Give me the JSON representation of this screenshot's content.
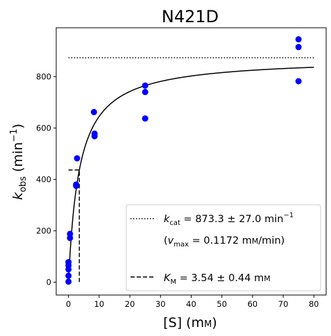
{
  "chart_data": {
    "type": "scatter",
    "title": "N421D",
    "xlabel": {
      "main": "[S] (m",
      "unit": "M",
      "close": ")"
    },
    "ylabel": {
      "k": "k",
      "sub": "obs",
      "main": " (min",
      "sup": "−1",
      "close": ")"
    },
    "xlim": [
      -4,
      84
    ],
    "ylim": [
      -50,
      990
    ],
    "xticks": [
      0,
      10,
      20,
      30,
      40,
      50,
      60,
      70,
      80
    ],
    "yticks": [
      0,
      200,
      400,
      600,
      800
    ],
    "grid": false,
    "legend_position": "lower-right",
    "series": [
      {
        "type": "scatter",
        "color": "#0000ff",
        "points": [
          [
            0,
            2
          ],
          [
            0,
            25
          ],
          [
            0,
            50
          ],
          [
            0,
            65
          ],
          [
            0,
            78
          ],
          [
            0.5,
            172
          ],
          [
            0.5,
            188
          ],
          [
            2.5,
            380
          ],
          [
            2.5,
            375
          ],
          [
            2.8,
            482
          ],
          [
            8.3,
            662
          ],
          [
            8.5,
            578
          ],
          [
            8.5,
            568
          ],
          [
            25,
            765
          ],
          [
            25,
            740
          ],
          [
            25,
            637
          ],
          [
            75,
            945
          ],
          [
            75,
            915
          ],
          [
            75,
            782
          ]
        ]
      }
    ],
    "fit": {
      "model": "michaelis-menten",
      "kcat": 873.3,
      "km": 3.54,
      "x_range": [
        0,
        80
      ],
      "color": "#000000"
    },
    "kcat_line": {
      "y": 873.3,
      "x_range": [
        0,
        80
      ],
      "style": "dotted"
    },
    "km_line": {
      "x": 3.54,
      "y": 436.65,
      "style": "dashed"
    },
    "legend": {
      "kcat": {
        "k": "k",
        "sub": "cat",
        "text": " = 873.3 ± 27.0 min",
        "sup": "−1"
      },
      "vmax": {
        "open": "(",
        "v": "v",
        "sub": "max",
        "text": " = 0.1172 m",
        "unit": "M",
        "close": "/min)"
      },
      "km": {
        "k": "K",
        "sub": "M",
        "text": " = 3.54 ± 0.44 m",
        "unit": "M"
      }
    }
  }
}
